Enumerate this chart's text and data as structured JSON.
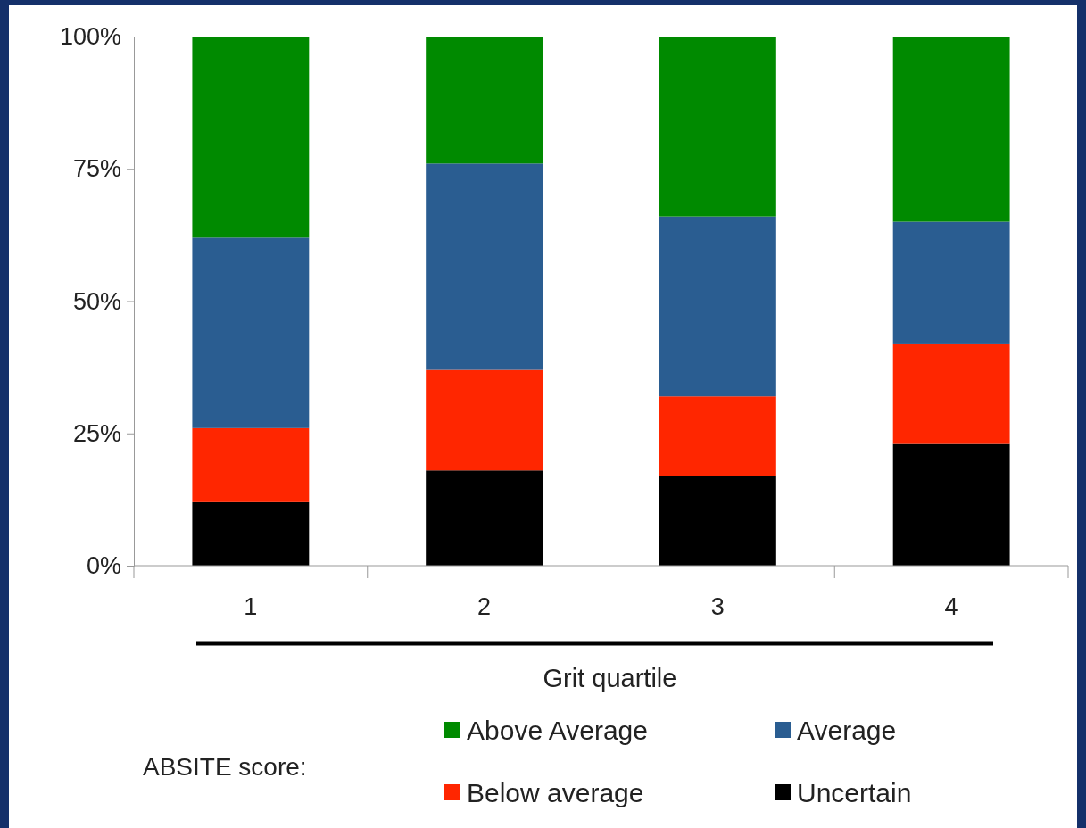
{
  "chart_data": {
    "type": "bar",
    "stacked": true,
    "xlabel": "Grit quartile",
    "legend_title": "ABSITE score:",
    "legend": "bottom",
    "grid": false,
    "categories": [
      "1",
      "2",
      "3",
      "4"
    ],
    "series": [
      {
        "name": "Uncertain",
        "color": "#000000",
        "values": [
          12,
          18,
          17,
          23
        ]
      },
      {
        "name": "Below average",
        "color": "#ff2600",
        "values": [
          14,
          19,
          15,
          19
        ]
      },
      {
        "name": "Average",
        "color": "#2a5d91",
        "values": [
          36,
          39,
          34,
          23
        ]
      },
      {
        "name": "Above Average",
        "color": "#008a00",
        "values": [
          38,
          24,
          34,
          35
        ]
      }
    ],
    "ylim": [
      0,
      100
    ],
    "yticks": [
      {
        "value": 0,
        "label": "0%"
      },
      {
        "value": 25,
        "label": "25%"
      },
      {
        "value": 50,
        "label": "50%"
      },
      {
        "value": 75,
        "label": "75%"
      },
      {
        "value": 100,
        "label": "100%"
      }
    ]
  }
}
